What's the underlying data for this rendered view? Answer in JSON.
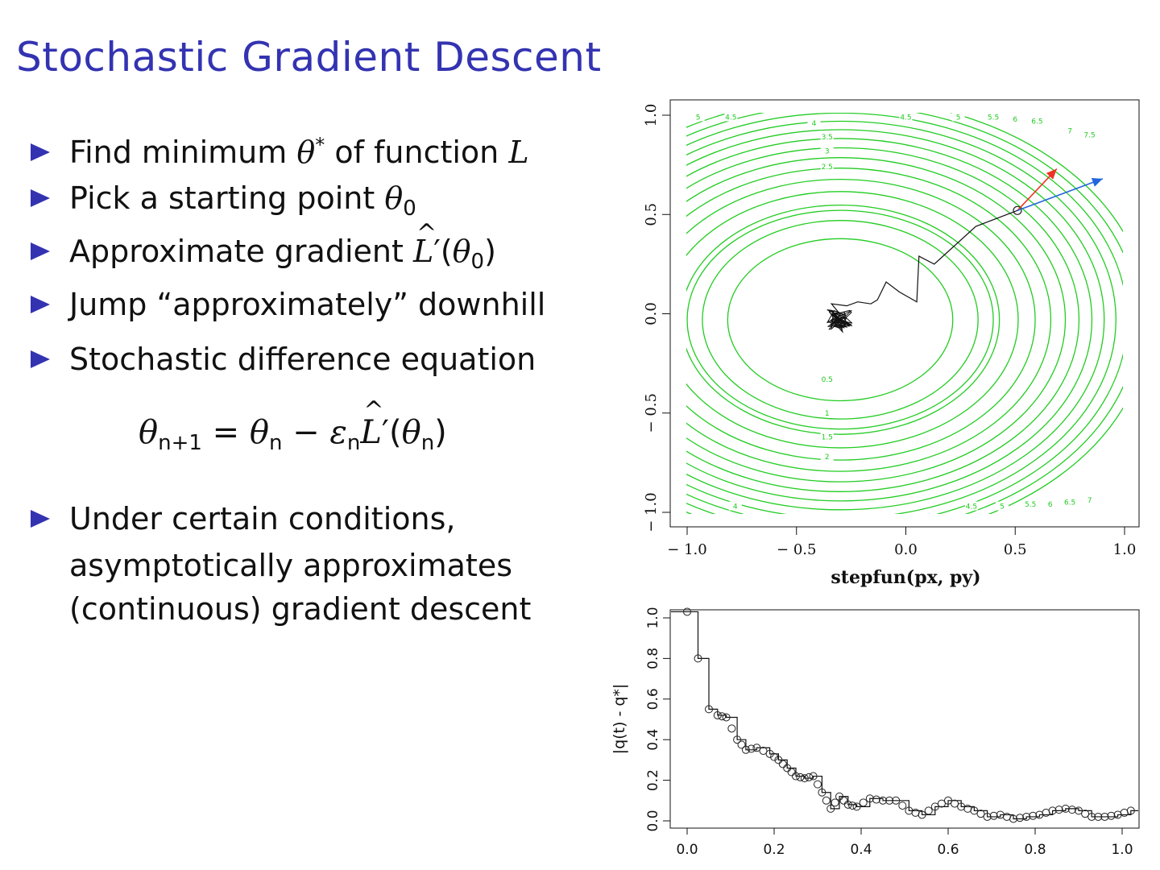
{
  "slide": {
    "title": "Stochastic Gradient Descent",
    "bullets": [
      {
        "pre": "Find minimum ",
        "sym": "θ",
        "sup": "*",
        "post": " of function ",
        "sym2": "L"
      },
      {
        "pre": "Pick a starting point ",
        "sym": "θ",
        "sub": "0"
      },
      {
        "pre": "Approximate gradient ",
        "sym": "L",
        "prime": "′(",
        "sym2": "θ",
        "sub": "0",
        "post": ")"
      },
      {
        "pre": "Jump “approximately” downhill"
      },
      {
        "pre": "Stochastic difference equation"
      }
    ],
    "equation": {
      "lhs": "θ",
      "lhs_sub": "n+1",
      "eq": " = ",
      "t1": "θ",
      "t1_sub": "n",
      "minus": " − ",
      "eps": "ε",
      "eps_sub": "n",
      "L": "L",
      "prime": "′(",
      "t2": "θ",
      "t2_sub": "n",
      "close": ")"
    },
    "last_bullet": [
      "Under certain conditions,",
      "asymptotically approximates",
      "(continuous) gradient descent"
    ]
  },
  "colors": {
    "title": "#3333b2",
    "contour": "#22cc22",
    "path": "#111111",
    "arrow_red": "#ee3322",
    "arrow_blue": "#2266dd"
  },
  "chart_data": [
    {
      "type": "contour",
      "title": "",
      "xlabel": "stepfun(px, py)",
      "ylabel": "",
      "xlim": [
        -1.0,
        1.0
      ],
      "ylim": [
        -1.0,
        1.0
      ],
      "x_ticks": [
        "-1.0",
        "-0.5",
        "0.0",
        "0.5",
        "1.0"
      ],
      "y_ticks": [
        "-1.0",
        "-0.5",
        "0.0",
        "0.5",
        "1.0"
      ],
      "contour_center": [
        -0.3,
        -0.03
      ],
      "contour_levels": [
        0.5,
        1,
        1.5,
        2,
        2.5,
        3,
        3.5,
        4,
        4.5,
        5,
        5.5,
        6,
        6.5,
        7,
        7.5
      ],
      "contour_labels": [
        {
          "text": "0.5",
          "x": -0.36,
          "y": -0.33
        },
        {
          "text": "1",
          "x": -0.36,
          "y": -0.5
        },
        {
          "text": "1.5",
          "x": -0.36,
          "y": -0.62
        },
        {
          "text": "2",
          "x": -0.36,
          "y": -0.72
        },
        {
          "text": "2.5",
          "x": -0.36,
          "y": 0.74
        },
        {
          "text": "3",
          "x": -0.36,
          "y": 0.82
        },
        {
          "text": "3.5",
          "x": -0.36,
          "y": 0.89
        },
        {
          "text": "4",
          "x": -0.42,
          "y": 0.96
        },
        {
          "text": "4.5",
          "x": -0.8,
          "y": 0.99
        },
        {
          "text": "5",
          "x": -0.95,
          "y": 0.99
        },
        {
          "text": "4.5",
          "x": 0.0,
          "y": 0.99
        },
        {
          "text": "5",
          "x": 0.24,
          "y": 0.99
        },
        {
          "text": "5.5",
          "x": 0.4,
          "y": 0.99
        },
        {
          "text": "6",
          "x": 0.5,
          "y": 0.98
        },
        {
          "text": "6.5",
          "x": 0.6,
          "y": 0.97
        },
        {
          "text": "7",
          "x": 0.75,
          "y": 0.92
        },
        {
          "text": "7.5",
          "x": 0.84,
          "y": 0.9
        },
        {
          "text": "4",
          "x": -0.78,
          "y": -0.97
        },
        {
          "text": "4.5",
          "x": 0.3,
          "y": -0.97
        },
        {
          "text": "5",
          "x": 0.44,
          "y": -0.97
        },
        {
          "text": "5.5",
          "x": 0.57,
          "y": -0.96
        },
        {
          "text": "6",
          "x": 0.66,
          "y": -0.96
        },
        {
          "text": "6.5",
          "x": 0.75,
          "y": -0.95
        },
        {
          "text": "7",
          "x": 0.84,
          "y": -0.94
        }
      ],
      "path": [
        [
          0.51,
          0.52
        ],
        [
          0.32,
          0.44
        ],
        [
          0.13,
          0.25
        ],
        [
          0.06,
          0.29
        ],
        [
          0.05,
          0.06
        ],
        [
          -0.03,
          0.11
        ],
        [
          -0.09,
          0.16
        ],
        [
          -0.13,
          0.07
        ],
        [
          -0.16,
          0.05
        ],
        [
          -0.22,
          0.06
        ],
        [
          -0.27,
          0.04
        ],
        [
          -0.34,
          0.05
        ],
        [
          -0.31,
          0.01
        ],
        [
          -0.36,
          0.02
        ],
        [
          -0.3,
          -0.01
        ],
        [
          -0.33,
          -0.04
        ],
        [
          -0.27,
          -0.05
        ],
        [
          -0.31,
          -0.07
        ],
        [
          -0.26,
          -0.06
        ],
        [
          -0.32,
          -0.02
        ],
        [
          -0.28,
          0.0
        ],
        [
          -0.34,
          -0.03
        ],
        [
          -0.29,
          -0.09
        ],
        [
          -0.3,
          -0.04
        ],
        [
          -0.33,
          0.0
        ]
      ],
      "start_point": [
        0.51,
        0.52
      ],
      "arrows": [
        {
          "color": "red",
          "from": [
            0.51,
            0.52
          ],
          "to": [
            0.69,
            0.73
          ]
        },
        {
          "color": "blue",
          "from": [
            0.51,
            0.52
          ],
          "to": [
            0.9,
            0.68
          ]
        }
      ]
    },
    {
      "type": "step",
      "title": "",
      "xlabel": "",
      "ylabel": "|q(t) - q*|",
      "xlim": [
        -0.04,
        1.04
      ],
      "ylim": [
        -0.04,
        1.06
      ],
      "x_ticks": [
        "0.0",
        "0.2",
        "0.4",
        "0.6",
        "0.8",
        "1.0"
      ],
      "y_ticks": [
        "0.0",
        "0.2",
        "0.4",
        "0.6",
        "0.8",
        "1.0"
      ],
      "x": [
        0.0,
        0.025,
        0.05,
        0.07,
        0.09,
        0.115,
        0.135,
        0.16,
        0.19,
        0.21,
        0.23,
        0.25,
        0.27,
        0.29,
        0.31,
        0.33,
        0.35,
        0.37,
        0.39,
        0.42,
        0.45,
        0.48,
        0.51,
        0.54,
        0.57,
        0.6,
        0.63,
        0.66,
        0.69,
        0.72,
        0.75,
        0.78,
        0.81,
        0.84,
        0.87,
        0.9,
        0.93,
        0.96,
        0.99,
        1.02
      ],
      "y": [
        1.03,
        0.8,
        0.55,
        0.52,
        0.51,
        0.4,
        0.35,
        0.36,
        0.33,
        0.3,
        0.26,
        0.22,
        0.21,
        0.22,
        0.14,
        0.06,
        0.12,
        0.08,
        0.07,
        0.11,
        0.1,
        0.1,
        0.05,
        0.03,
        0.07,
        0.1,
        0.07,
        0.05,
        0.02,
        0.03,
        0.01,
        0.02,
        0.03,
        0.05,
        0.06,
        0.05,
        0.02,
        0.02,
        0.03,
        0.05
      ]
    }
  ]
}
